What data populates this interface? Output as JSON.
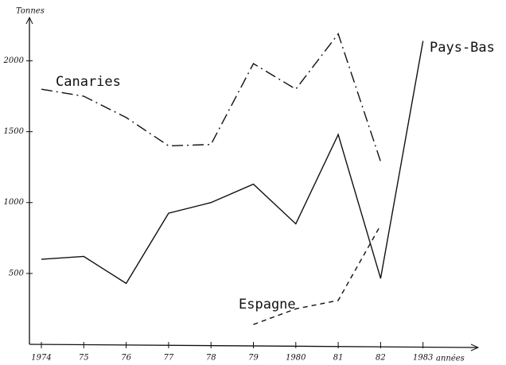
{
  "chart_data": {
    "type": "line",
    "y_label": "Tonnes",
    "x_label": "années",
    "categories": [
      "1974",
      "75",
      "76",
      "77",
      "78",
      "79",
      "1980",
      "81",
      "82",
      "1983"
    ],
    "series": [
      {
        "name": "Canaries",
        "color": "#111111",
        "dash": "14 5 2 5",
        "values": [
          1800,
          1750,
          1600,
          1400,
          1410,
          1980,
          1800,
          2190,
          1290,
          null
        ]
      },
      {
        "name": "Pays-Bas",
        "color": "#111111",
        "dash": "none",
        "values": [
          600,
          620,
          430,
          925,
          1000,
          1130,
          850,
          1480,
          465,
          2140
        ]
      },
      {
        "name": "Espagne",
        "color": "#111111",
        "dash": "6 5",
        "values": [
          null,
          null,
          null,
          null,
          null,
          140,
          250,
          310,
          840,
          null
        ]
      }
    ],
    "ylim": [
      0,
      2300
    ],
    "yticks": [
      500,
      1000,
      1500,
      2000
    ]
  }
}
